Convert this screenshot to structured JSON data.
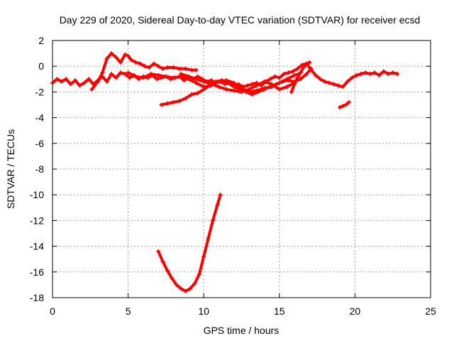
{
  "chart_data": {
    "type": "scatter",
    "title": "Day 229 of 2020, Sidereal Day-to-day VTEC variation (SDTVAR) for receiver ecsd",
    "xlabel": "GPS time / hours",
    "ylabel": "SDTVAR / TECUs",
    "xlim": [
      0,
      25
    ],
    "ylim": [
      -18,
      2
    ],
    "xticks": [
      0,
      5,
      10,
      15,
      20,
      25
    ],
    "yticks": [
      2,
      0,
      -2,
      -4,
      -6,
      -8,
      -10,
      -12,
      -14,
      -16,
      -18
    ],
    "grid": true,
    "legend": "none",
    "series_color": "#ff0000",
    "series": [
      {
        "name": "main-trace",
        "x": [
          0.0,
          0.3,
          0.6,
          0.9,
          1.2,
          1.5,
          1.8,
          2.1,
          2.4,
          2.7,
          3.0,
          3.3,
          3.6,
          3.9,
          4.2,
          4.5,
          4.8,
          5.1,
          5.4,
          5.7,
          6.0,
          6.3,
          6.6,
          6.9,
          7.2,
          7.5,
          7.8,
          8.1,
          8.4,
          8.7,
          9.0,
          9.3,
          9.6,
          9.9,
          10.2,
          10.5,
          10.8,
          11.1,
          11.4,
          11.7,
          12.0,
          12.3,
          12.6,
          12.9,
          13.2,
          13.5,
          13.8,
          14.1,
          14.4,
          14.7,
          15.0,
          15.3,
          15.6,
          15.9,
          16.2,
          16.5,
          16.8,
          17.1,
          17.4,
          17.7,
          18.0,
          18.3,
          18.6,
          18.9,
          19.2,
          19.5,
          19.8,
          20.1,
          20.4,
          20.7,
          21.0,
          21.3,
          21.6,
          21.9,
          22.2,
          22.5,
          22.8
        ],
        "y": [
          -1.3,
          -1.0,
          -1.2,
          -1.0,
          -1.4,
          -1.1,
          -1.5,
          -1.3,
          -1.0,
          -1.4,
          -1.1,
          -0.8,
          -1.2,
          -0.6,
          -0.9,
          -0.5,
          -0.6,
          -0.9,
          -0.7,
          -1.0,
          -0.8,
          -0.9,
          -0.7,
          -1.0,
          -0.9,
          -0.8,
          -1.0,
          -0.9,
          -0.8,
          -1.1,
          -0.9,
          -1.0,
          -0.8,
          -1.0,
          -1.2,
          -1.1,
          -1.3,
          -1.2,
          -1.4,
          -1.3,
          -1.5,
          -1.4,
          -1.6,
          -1.5,
          -1.4,
          -1.3,
          -1.5,
          -1.2,
          -1.0,
          -0.8,
          -0.9,
          -0.6,
          -0.5,
          -0.4,
          -0.2,
          0.1,
          0.2,
          -0.3,
          -0.7,
          -1.0,
          -1.2,
          -1.3,
          -1.4,
          -1.5,
          -1.6,
          -1.2,
          -0.9,
          -0.7,
          -0.6,
          -0.5,
          -0.6,
          -0.5,
          -0.7,
          -0.4,
          -0.6,
          -0.5,
          -0.6
        ]
      },
      {
        "name": "upper-arc",
        "x": [
          2.6,
          3.0,
          3.3,
          3.6,
          3.9,
          4.2,
          4.5,
          4.8,
          5.0,
          5.2,
          5.5,
          5.8,
          6.1,
          6.4,
          6.7,
          7.0,
          7.3,
          7.6,
          8.0,
          8.4,
          8.8,
          9.2,
          9.5
        ],
        "y": [
          -1.8,
          -1.2,
          -0.5,
          0.6,
          1.0,
          0.7,
          0.3,
          0.9,
          0.8,
          0.5,
          0.3,
          0.2,
          0.0,
          -0.1,
          0.2,
          0.0,
          -0.2,
          -0.1,
          -0.1,
          -0.2,
          -0.2,
          -0.3,
          -0.3
        ]
      },
      {
        "name": "crossing-arc-a",
        "x": [
          5.0,
          5.5,
          6.0,
          6.5,
          7.0,
          7.5,
          8.0,
          8.5,
          9.0,
          9.5,
          10.0,
          10.5,
          11.0,
          11.5,
          12.0,
          12.5,
          13.0,
          13.5,
          14.0,
          14.5,
          15.0,
          15.5,
          16.0,
          16.3
        ],
        "y": [
          -0.5,
          -0.8,
          -0.9,
          -0.6,
          -0.7,
          -0.8,
          -0.9,
          -0.8,
          -1.0,
          -1.3,
          -1.6,
          -1.5,
          -1.2,
          -1.1,
          -1.3,
          -1.7,
          -2.0,
          -1.9,
          -1.7,
          -1.6,
          -1.3,
          -1.0,
          -0.7,
          -0.6
        ]
      },
      {
        "name": "crossing-arc-b",
        "x": [
          8.5,
          9.0,
          9.5,
          10.0,
          10.5,
          11.0,
          11.5,
          12.0,
          12.5,
          13.0,
          13.5,
          14.0,
          14.5,
          15.0,
          15.5,
          16.0
        ],
        "y": [
          -0.6,
          -0.8,
          -1.0,
          -1.2,
          -1.4,
          -1.6,
          -1.8,
          -1.9,
          -2.0,
          -1.8,
          -1.5,
          -1.2,
          -1.4,
          -1.8,
          -1.6,
          -1.3
        ]
      },
      {
        "name": "descending-arc",
        "x": [
          7.2,
          7.6,
          8.0,
          8.4,
          8.8,
          9.2,
          9.6,
          10.0,
          10.4,
          10.8,
          11.2,
          11.6,
          12.0,
          12.4,
          12.8,
          13.2,
          13.6,
          14.0,
          14.4,
          14.8,
          15.2,
          15.6,
          16.0,
          16.4,
          16.8,
          17.1
        ],
        "y": [
          -3.0,
          -2.9,
          -2.8,
          -2.7,
          -2.5,
          -2.2,
          -2.1,
          -1.8,
          -1.5,
          -1.2,
          -1.1,
          -1.3,
          -1.6,
          -1.8,
          -2.0,
          -2.2,
          -2.0,
          -1.8,
          -1.6,
          -1.4,
          -1.2,
          -1.1,
          -1.2,
          -1.0,
          -0.6,
          -0.2
        ]
      },
      {
        "name": "right-rising-arc",
        "x": [
          15.8,
          16.0,
          16.2,
          16.4,
          16.6,
          16.8,
          17.0
        ],
        "y": [
          -2.0,
          -1.4,
          -0.9,
          -0.5,
          -0.1,
          0.2,
          0.3
        ]
      },
      {
        "name": "late-segment",
        "x": [
          19.0,
          19.2,
          19.4,
          19.6
        ],
        "y": [
          -3.2,
          -3.1,
          -3.0,
          -2.8
        ]
      },
      {
        "name": "deep-dip",
        "x": [
          7.0,
          7.3,
          7.6,
          7.9,
          8.2,
          8.5,
          8.8,
          9.1,
          9.4,
          9.7,
          10.0,
          10.3,
          10.6,
          10.9,
          11.1
        ],
        "y": [
          -14.4,
          -15.2,
          -15.9,
          -16.5,
          -17.0,
          -17.3,
          -17.5,
          -17.3,
          -16.9,
          -16.2,
          -14.8,
          -13.4,
          -12.0,
          -10.8,
          -10.0
        ]
      }
    ]
  }
}
